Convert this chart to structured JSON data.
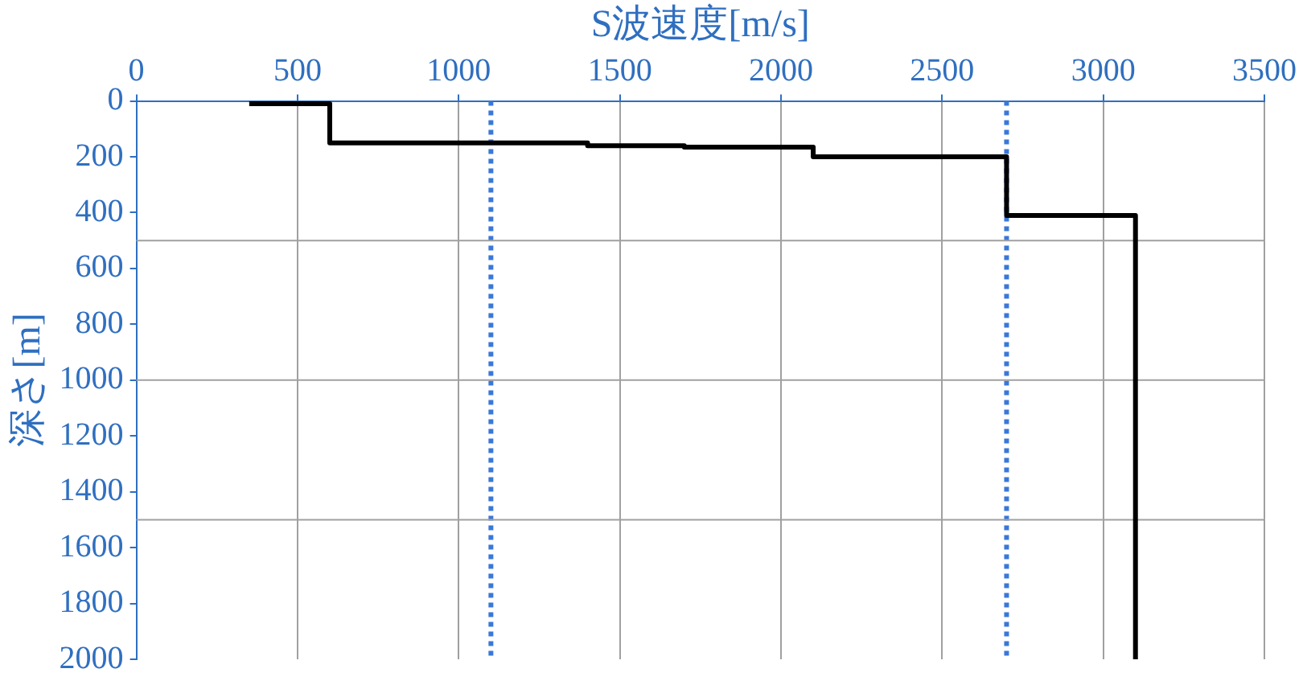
{
  "chart_data": {
    "type": "line",
    "xlabel": "S波速度[m/s]",
    "ylabel": "深さ[m]",
    "series": [
      {
        "color": "#000000",
        "x": [
          350,
          600,
          600,
          1400,
          1400,
          1700,
          1700,
          2100,
          2100,
          2700,
          2700,
          3100,
          3100
        ],
        "values": [
          10,
          10,
          150,
          150,
          160,
          160,
          165,
          165,
          200,
          200,
          410,
          410,
          2000
        ]
      }
    ],
    "xlim": [
      0,
      3500
    ],
    "xticks": [
      0,
      500,
      1000,
      1500,
      2000,
      2500,
      3000,
      3500
    ],
    "ylim": [
      2000,
      0
    ],
    "yticks": [
      0,
      200,
      400,
      600,
      800,
      1000,
      1200,
      1400,
      1600,
      1800,
      2000
    ],
    "grid": "x",
    "legend": false,
    "marker": "none",
    "line_style": "solid",
    "ref_lines": [
      {
        "axis": "x",
        "value": 1100,
        "color": "#3a78d8",
        "line_style": "dotted"
      },
      {
        "axis": "x",
        "value": 2700,
        "color": "#3a78d8",
        "line_style": "dotted"
      },
      {
        "axis": "y",
        "value": 500,
        "color": "#a0a0a0",
        "line_style": "solid"
      },
      {
        "axis": "y",
        "value": 1000,
        "color": "#a0a0a0",
        "line_style": "solid"
      },
      {
        "axis": "y",
        "value": 1500,
        "color": "#a0a0a0",
        "line_style": "solid"
      }
    ]
  }
}
